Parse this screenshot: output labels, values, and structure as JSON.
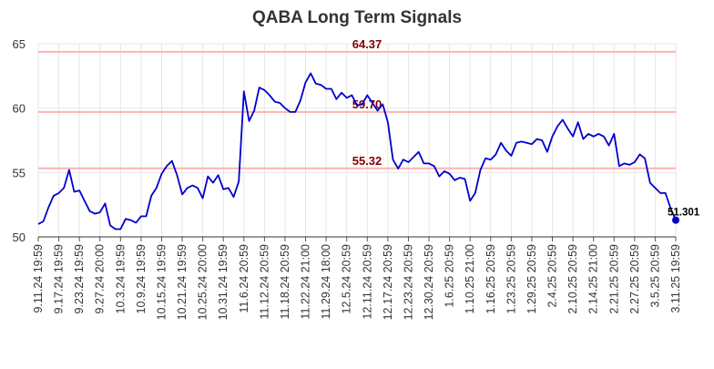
{
  "chart_data": {
    "type": "line",
    "title": "QABA Long Term Signals",
    "xlabel": "",
    "ylabel": "",
    "ylim": [
      50,
      65
    ],
    "yticks": [
      50,
      55,
      60,
      65
    ],
    "grid": true,
    "x_tick_labels": [
      "9.11.24 19:59",
      "9.17.24 19:59",
      "9.23.24 19:59",
      "9.27.24 20:00",
      "10.3.24 19:59",
      "10.9.24 19:59",
      "10.15.24 19:59",
      "10.21.24 19:59",
      "10.25.24 20:00",
      "10.31.24 19:59",
      "11.6.24 20:59",
      "11.12.24 20:59",
      "11.18.24 20:59",
      "11.22.24 21:00",
      "11.29.24 18:00",
      "12.5.24 20:59",
      "12.11.24 20:59",
      "12.17.24 20:59",
      "12.23.24 20:59",
      "12.30.24 20:59",
      "1.6.25 20:59",
      "1.10.25 21:00",
      "1.16.25 20:59",
      "1.23.25 20:59",
      "1.29.25 20:59",
      "2.4.25 20:59",
      "2.10.25 20:59",
      "2.14.25 21:00",
      "2.21.25 20:59",
      "2.27.25 20:59",
      "3.5.25 20:59",
      "3.11.25 19:59"
    ],
    "series": [
      {
        "color": "#0000cc",
        "values": [
          51.0,
          51.2,
          52.3,
          53.2,
          53.4,
          53.8,
          55.2,
          53.5,
          53.6,
          52.8,
          52.0,
          51.8,
          51.9,
          52.6,
          50.9,
          50.6,
          50.6,
          51.4,
          51.3,
          51.1,
          51.6,
          51.6,
          53.2,
          53.8,
          54.9,
          55.5,
          55.9,
          54.8,
          53.3,
          53.8,
          54.0,
          53.8,
          53.0,
          54.7,
          54.2,
          54.8,
          53.7,
          53.8,
          53.1,
          54.3,
          61.3,
          59.0,
          59.8,
          61.6,
          61.4,
          61.0,
          60.5,
          60.4,
          60.0,
          59.7,
          59.7,
          60.6,
          62.0,
          62.7,
          61.9,
          61.8,
          61.5,
          61.5,
          60.7,
          61.2,
          60.8,
          61.0,
          60.2,
          60.3,
          61.0,
          60.4,
          59.8,
          60.3,
          58.9,
          56.0,
          55.3,
          56.0,
          55.8,
          56.2,
          56.6,
          55.7,
          55.7,
          55.5,
          54.7,
          55.1,
          54.9,
          54.4,
          54.6,
          54.5,
          52.8,
          53.4,
          55.2,
          56.1,
          56.0,
          56.4,
          57.3,
          56.7,
          56.3,
          57.3,
          57.4,
          57.3,
          57.2,
          57.6,
          57.5,
          56.6,
          57.8,
          58.6,
          59.1,
          58.4,
          57.8,
          58.9,
          57.6,
          58.0,
          57.8,
          58.0,
          57.8,
          57.1,
          58.0,
          55.5,
          55.7,
          55.6,
          55.8,
          56.4,
          56.1,
          54.2,
          53.8,
          53.4,
          53.4,
          52.2,
          51.301
        ]
      }
    ],
    "reference_lines": [
      {
        "value": 64.37,
        "label": "64.37",
        "color": "#ffb3b3",
        "label_color": "#800000"
      },
      {
        "value": 59.7,
        "label": "59.70",
        "color": "#ffb3b3",
        "label_color": "#800000"
      },
      {
        "value": 55.32,
        "label": "55.32",
        "color": "#ffb3b3",
        "label_color": "#800000"
      }
    ],
    "last_point": {
      "value": 51.301,
      "label": "51.301",
      "color": "#0000cc"
    }
  }
}
